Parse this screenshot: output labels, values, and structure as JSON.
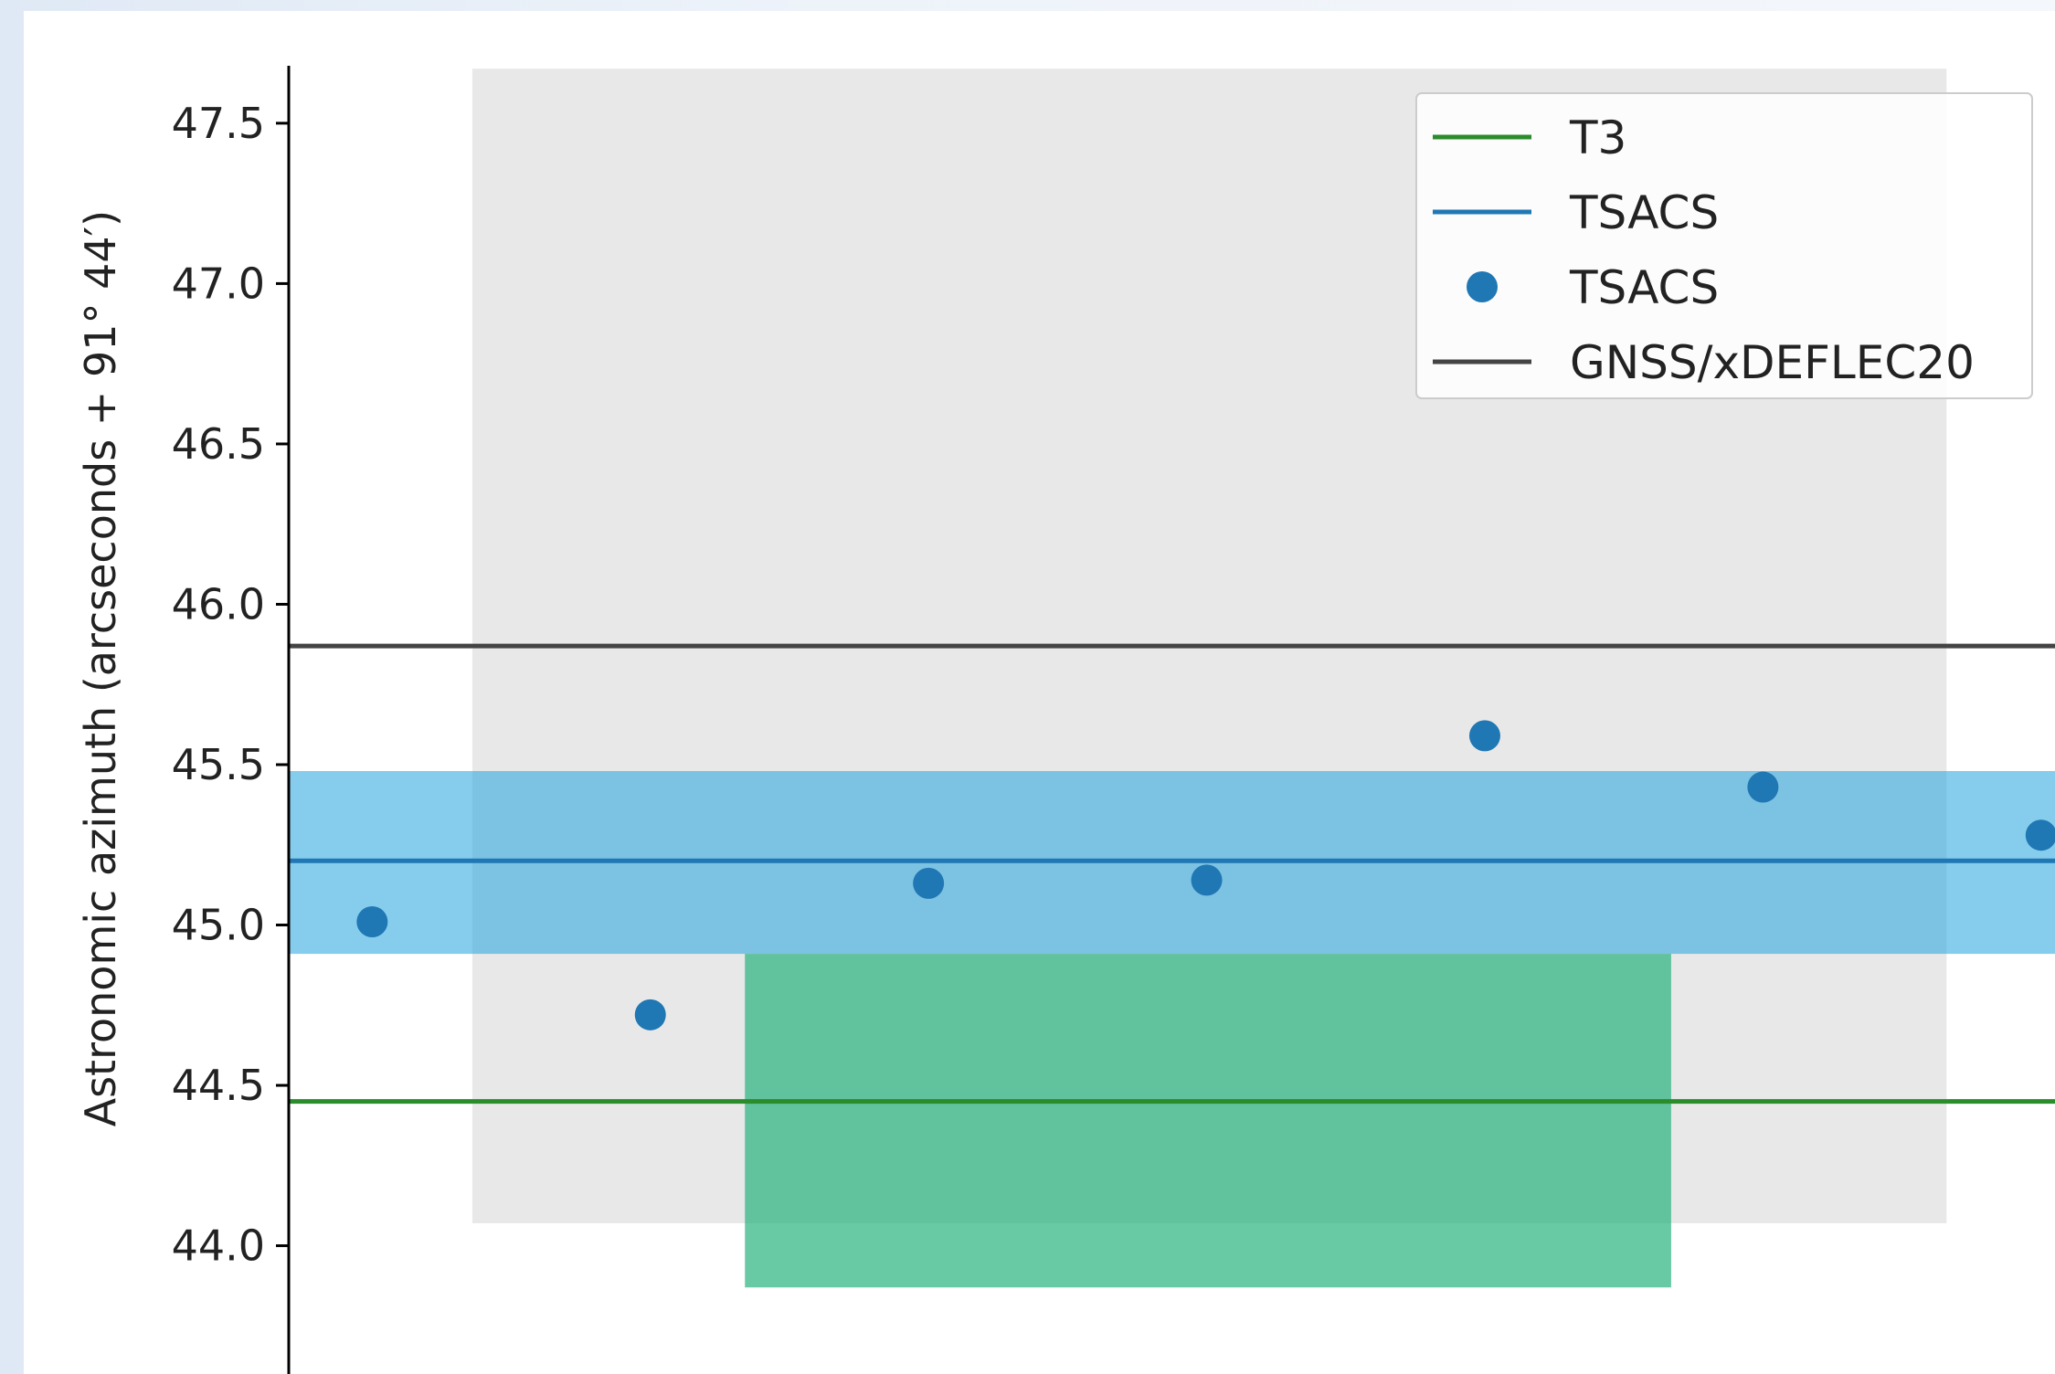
{
  "chart_data": {
    "type": "scatter",
    "title": "",
    "ylabel": "Astronomic azimuth (arcseconds + 91° 44′)",
    "xlabel": "",
    "ylim": [
      43.6,
      47.85
    ],
    "xlim": [
      0.0,
      6.35
    ],
    "yticks": [
      {
        "value": 44.0,
        "label": "44.0"
      },
      {
        "value": 44.5,
        "label": "44.5"
      },
      {
        "value": 45.0,
        "label": "45.0"
      },
      {
        "value": 45.5,
        "label": "45.5"
      },
      {
        "value": 46.0,
        "label": "46.0"
      },
      {
        "value": 46.5,
        "label": "46.5"
      },
      {
        "value": 47.0,
        "label": "47.0"
      },
      {
        "value": 47.5,
        "label": "47.5"
      }
    ],
    "grid": false,
    "legend_position": "top-right",
    "series": [
      {
        "name": "TSACS",
        "kind": "scatter",
        "color": "#1f77b4",
        "x": [
          0.3,
          1.3,
          2.3,
          3.3,
          4.3,
          5.3,
          6.3
        ],
        "y": [
          45.01,
          44.72,
          45.13,
          45.14,
          45.59,
          45.43,
          45.28
        ]
      },
      {
        "name": "T3",
        "kind": "hline",
        "color": "#2a8c2a",
        "y": 44.45
      },
      {
        "name": "TSACS",
        "kind": "hline",
        "color": "#1f77b4",
        "y": 45.2
      },
      {
        "name": "GNSS/xDEFLEC20",
        "kind": "hline",
        "color": "#444444",
        "y": 45.87
      }
    ],
    "bands": [
      {
        "kind": "rect",
        "color": "#c8c8c8",
        "opacity": 0.42,
        "x0": 0.66,
        "x1": 5.96,
        "y0": 44.07,
        "y1": 47.67
      },
      {
        "kind": "hband",
        "color": "#22a3dd",
        "opacity": 0.55,
        "y0": 44.91,
        "y1": 45.48
      },
      {
        "kind": "rect",
        "color": "#20b07a",
        "opacity": 0.68,
        "x0": 1.64,
        "x1": 4.97,
        "y0": 43.87,
        "y1": 44.91
      }
    ],
    "legend": [
      {
        "label": "T3",
        "marker": "line",
        "color": "#2a8c2a"
      },
      {
        "label": "TSACS",
        "marker": "line",
        "color": "#1f77b4"
      },
      {
        "label": "TSACS",
        "marker": "dot",
        "color": "#1f77b4"
      },
      {
        "label": "GNSS/xDEFLEC20",
        "marker": "line",
        "color": "#444444"
      }
    ]
  }
}
